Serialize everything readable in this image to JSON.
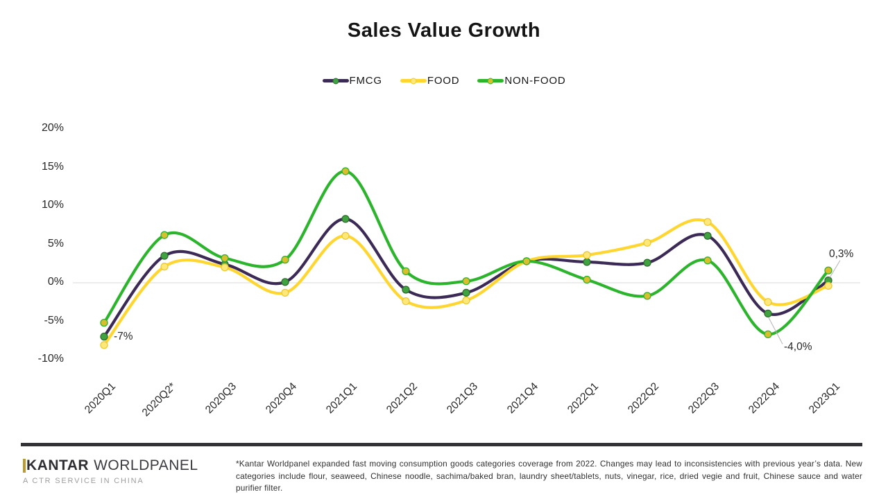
{
  "title": "Sales Value Growth",
  "chart_data": {
    "type": "line",
    "title": "Sales Value Growth",
    "categories": [
      "2020Q1",
      "2020Q2*",
      "2020Q3",
      "2020Q4",
      "2021Q1",
      "2021Q2",
      "2021Q3",
      "2021Q4",
      "2022Q1",
      "2022Q2",
      "2022Q3",
      "2022Q4",
      "2023Q1"
    ],
    "series": [
      {
        "name": "FMCG",
        "color": "#3b2a56",
        "marker_fill": "#3fa33f",
        "marker_stroke": "#2f6b2f",
        "values": [
          -7.0,
          3.5,
          2.4,
          0.1,
          8.3,
          -0.9,
          -1.3,
          2.8,
          2.7,
          2.6,
          6.1,
          -4.0,
          0.3
        ]
      },
      {
        "name": "FOOD",
        "color": "#ffd630",
        "marker_fill": "#ffe87a",
        "marker_stroke": "#ecc92e",
        "values": [
          -8.1,
          2.1,
          2.0,
          -1.3,
          6.1,
          -2.4,
          -2.3,
          2.8,
          3.6,
          5.2,
          7.9,
          -2.5,
          -0.4
        ]
      },
      {
        "name": "NON-FOOD",
        "color": "#2cb52c",
        "marker_fill": "#d9be2e",
        "marker_stroke": "#2cb52c",
        "values": [
          -5.2,
          6.2,
          3.2,
          3.0,
          14.5,
          1.5,
          0.2,
          2.8,
          0.4,
          -1.7,
          2.9,
          -6.7,
          1.6
        ]
      }
    ],
    "xlabel": "",
    "ylabel": "",
    "ylim": [
      -10,
      20
    ],
    "yticks": [
      {
        "label": "20%",
        "value": 20
      },
      {
        "label": "15%",
        "value": 15
      },
      {
        "label": "10%",
        "value": 10
      },
      {
        "label": "5%",
        "value": 5
      },
      {
        "label": "0%",
        "value": 0
      },
      {
        "label": "-5%",
        "value": -5
      },
      {
        "label": "-10%",
        "value": -10
      }
    ],
    "grid": "zero-line-only",
    "legend_position": "top-center",
    "annotations": [
      {
        "text": "-7%",
        "series": "FMCG",
        "category": "2020Q1",
        "category_index": 0
      },
      {
        "text": "-4,0%",
        "series": "FMCG",
        "category": "2022Q4",
        "category_index": 11
      },
      {
        "text": "0,3%",
        "series": "FMCG",
        "category": "2023Q1",
        "category_index": 12
      }
    ]
  },
  "footer": {
    "logo_main": "KANTAR",
    "logo_secondary": "WORLDPANEL",
    "logo_tagline": "A CTR SERVICE IN CHINA",
    "footnote": "*Kantar Worldpanel expanded fast moving consumption goods categories coverage from 2022. Changes may lead to inconsistencies with previous year’s data. New categories include flour, seaweed, Chinese noodle, sachima/baked bran, laundry sheet/tablets, nuts, vinegar, rice, dried vegie and fruit, Chinese sauce and water purifier filter."
  },
  "colors": {
    "background": "#ffffff",
    "zero_gridline": "#d9d9d9",
    "annotation_leader": "#b3b3b3",
    "footer_divider": "#323237",
    "logo_gold": "#bd9a2d"
  }
}
